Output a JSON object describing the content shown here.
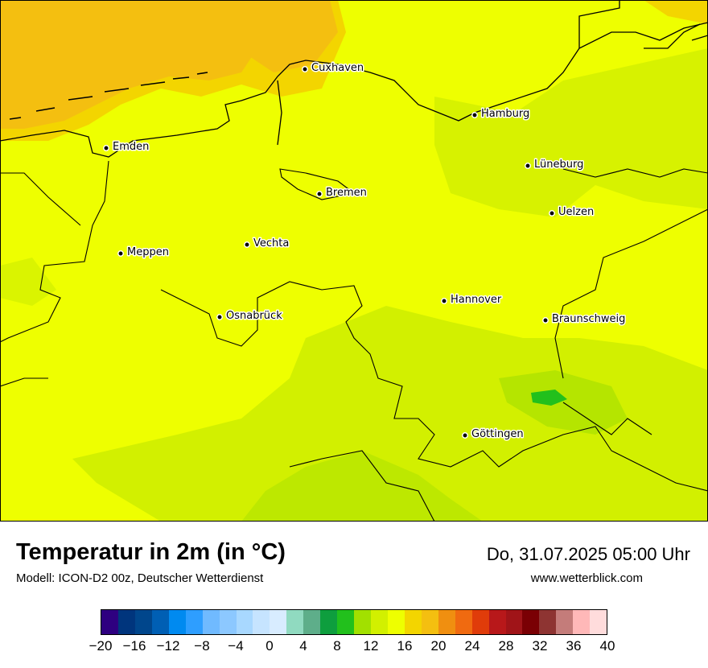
{
  "map": {
    "cities": [
      {
        "name": "Cuxhaven"
      },
      {
        "name": "Hamburg"
      },
      {
        "name": "Emden"
      },
      {
        "name": "Lüneburg"
      },
      {
        "name": "Bremen"
      },
      {
        "name": "Uelzen"
      },
      {
        "name": "Vechta"
      },
      {
        "name": "Meppen"
      },
      {
        "name": "Hannover"
      },
      {
        "name": "Osnabrück"
      },
      {
        "name": "Braunschweig"
      },
      {
        "name": "Göttingen"
      }
    ],
    "colors": {
      "sea": "#F4BF10",
      "coast_warm": "#F3D500",
      "land": "#EEFF00",
      "land_cool": "#D2F000",
      "land_cooler": "#B5E500",
      "land_coolest": "#22C01C",
      "border": "#000000"
    }
  },
  "footer": {
    "title": "Temperatur in 2m (in °C)",
    "subtitle": "Modell: ICON-D2 00z, Deutscher Wetterdienst",
    "datetime": "Do, 31.07.2025 05:00 Uhr",
    "website": "www.wetterblick.com"
  },
  "legend": {
    "min": -20,
    "max": 40,
    "tick_labels": [
      "−20",
      "−16",
      "−12",
      "−8",
      "−4",
      "0",
      "4",
      "8",
      "12",
      "16",
      "20",
      "24",
      "28",
      "32",
      "36",
      "40"
    ],
    "colors": [
      "#2E0080",
      "#00357D",
      "#00468C",
      "#005FB4",
      "#008AF0",
      "#2E9EFF",
      "#70BAFF",
      "#8CC8FF",
      "#A8D8FF",
      "#C6E4FF",
      "#D8ECFF",
      "#90DAC0",
      "#5EAE8A",
      "#0E9E3E",
      "#22C01C",
      "#A2E000",
      "#D2F000",
      "#EEFF00",
      "#F3D500",
      "#F4BF10",
      "#F08F10",
      "#F06A10",
      "#E03C0A",
      "#B8181A",
      "#A01418",
      "#7A0004",
      "#8E3432",
      "#C47C7A",
      "#FFB8B8",
      "#FFDCDC"
    ]
  }
}
